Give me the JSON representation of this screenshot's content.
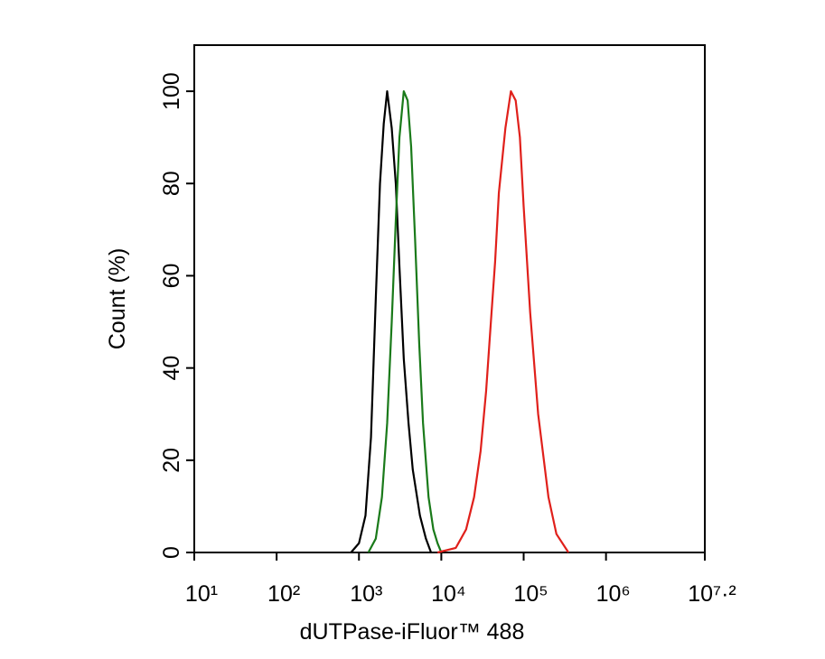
{
  "chart_data": {
    "type": "line",
    "x_label": "dUTPase-iFluor™ 488",
    "y_label": "Count  (%)",
    "xscale": "log",
    "xlim": [
      10,
      15848932
    ],
    "ylim": [
      0,
      110
    ],
    "xticks": [
      {
        "value": 10,
        "label": "10¹"
      },
      {
        "value": 100,
        "label": "10²"
      },
      {
        "value": 1000,
        "label": "10³"
      },
      {
        "value": 10000,
        "label": "10⁴"
      },
      {
        "value": 100000,
        "label": "10⁵"
      },
      {
        "value": 1000000,
        "label": "10⁶"
      },
      {
        "value": 15848932,
        "label": "10⁷·²"
      }
    ],
    "yticks": [
      0,
      20,
      40,
      60,
      80,
      100
    ],
    "series": [
      {
        "color": "#000000",
        "x": [
          800,
          1000,
          1200,
          1400,
          1600,
          1800,
          2000,
          2200,
          2500,
          2800,
          3100,
          3500,
          4000,
          4500,
          5500,
          6500,
          7500
        ],
        "values": [
          0,
          2,
          8,
          25,
          55,
          80,
          93,
          100,
          92,
          80,
          62,
          42,
          28,
          18,
          8,
          3,
          0
        ]
      },
      {
        "color": "#1a7a1a",
        "x": [
          1300,
          1600,
          1900,
          2200,
          2500,
          2800,
          3100,
          3500,
          3900,
          4300,
          4800,
          5400,
          6000,
          7000,
          8000,
          9000,
          10000
        ],
        "values": [
          0,
          3,
          12,
          28,
          50,
          72,
          90,
          100,
          98,
          88,
          68,
          45,
          28,
          12,
          5,
          2,
          0
        ]
      },
      {
        "color": "#e0201b",
        "x": [
          9000,
          15000,
          20000,
          25000,
          30000,
          35000,
          40000,
          45000,
          50000,
          60000,
          70000,
          80000,
          90000,
          100000,
          120000,
          150000,
          200000,
          250000,
          350000
        ],
        "values": [
          0,
          1,
          5,
          12,
          22,
          35,
          50,
          63,
          78,
          92,
          100,
          98,
          90,
          75,
          52,
          30,
          12,
          4,
          0
        ]
      }
    ]
  }
}
